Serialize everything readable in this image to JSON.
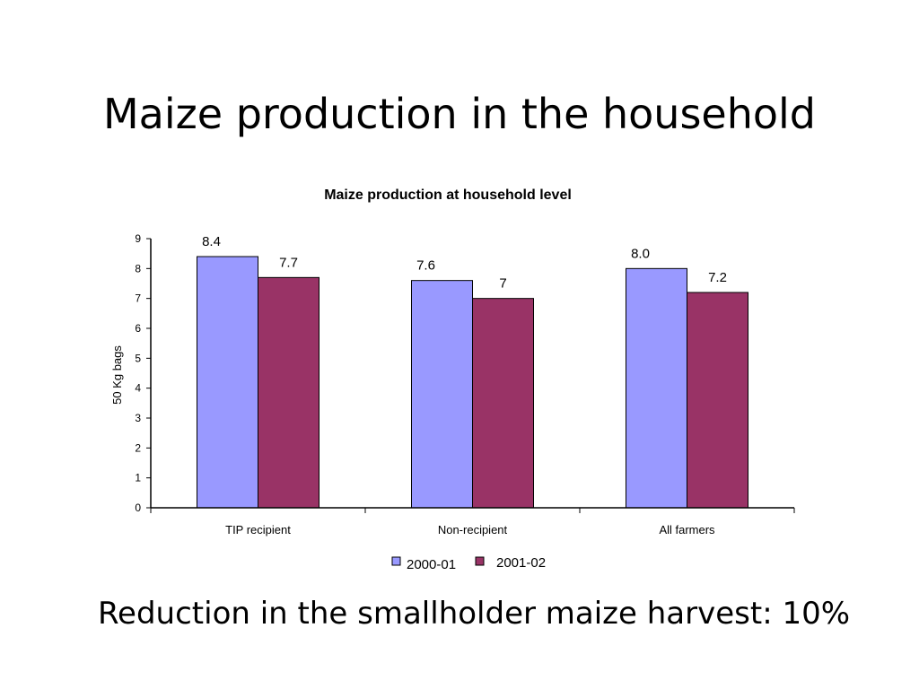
{
  "slide": {
    "title": "Maize production in the household",
    "footer": "Reduction in the smallholder maize harvest: 10%"
  },
  "chart_data": {
    "type": "bar",
    "title": "Maize production at household level",
    "xlabel": "",
    "ylabel": "50 Kg bags",
    "ylim": [
      0,
      9
    ],
    "yticks": [
      0,
      1,
      2,
      3,
      4,
      5,
      6,
      7,
      8,
      9
    ],
    "categories": [
      "TIP recipient",
      "Non-recipient",
      "All farmers"
    ],
    "series": [
      {
        "name": "2000-01",
        "values": [
          8.4,
          7.6,
          8.0
        ],
        "labels": [
          "8.4",
          "7.6",
          "8.0"
        ],
        "color": "#9999FF"
      },
      {
        "name": "2001-02",
        "values": [
          7.7,
          7,
          7.2
        ],
        "labels": [
          "7.7",
          "7",
          "7.2"
        ],
        "color": "#993366"
      }
    ],
    "legend": "bottom",
    "grid": false
  }
}
